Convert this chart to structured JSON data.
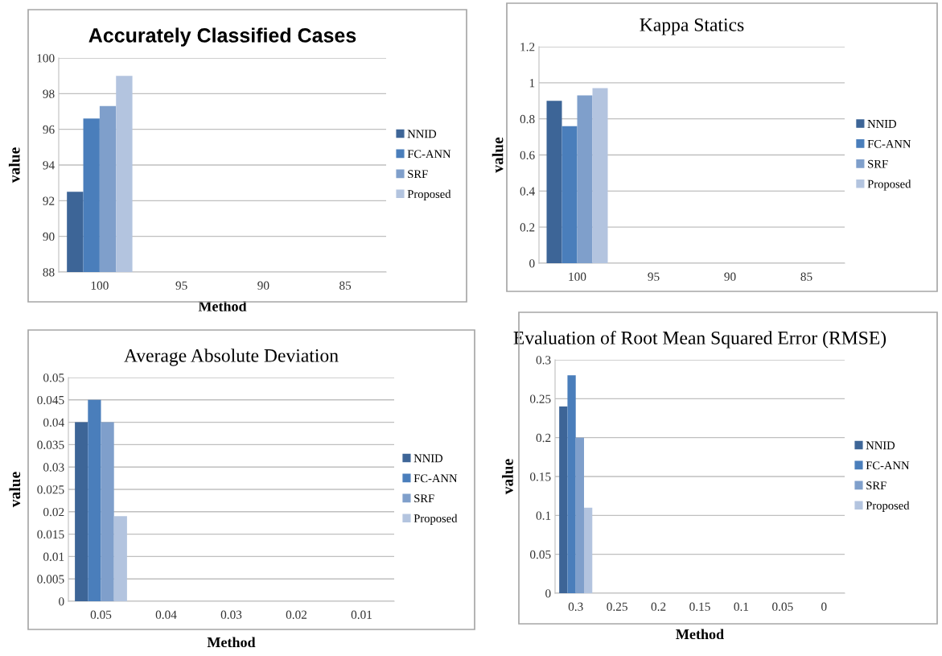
{
  "chart_data": [
    {
      "type": "bar",
      "title": "Accurately Classified Cases",
      "xlabel": "Method",
      "ylabel": "value",
      "categories": [
        "100",
        "95",
        "90",
        "85"
      ],
      "ylim": [
        88,
        100
      ],
      "yticks": [
        88,
        90,
        92,
        94,
        96,
        98,
        100
      ],
      "grid": "y",
      "legend": "right",
      "series": [
        {
          "name": "NNID",
          "color": "#3d6597",
          "values": [
            92.5,
            null,
            null,
            null
          ]
        },
        {
          "name": "FC-ANN",
          "color": "#4a7ebb",
          "values": [
            96.6,
            null,
            null,
            null
          ]
        },
        {
          "name": "SRF",
          "color": "#7f9fcb",
          "values": [
            97.3,
            null,
            null,
            null
          ]
        },
        {
          "name": "Proposed",
          "color": "#b3c4df",
          "values": [
            99,
            null,
            null,
            null
          ]
        }
      ]
    },
    {
      "type": "bar",
      "title": "Kappa Statics",
      "ylabel": "value",
      "categories": [
        "100",
        "95",
        "90",
        "85"
      ],
      "ylim": [
        0,
        1.2
      ],
      "yticks": [
        0,
        0.2,
        0.4,
        0.6,
        0.8,
        1,
        1.2
      ],
      "grid": "y",
      "legend": "right",
      "series": [
        {
          "name": "NNID",
          "color": "#3d6597",
          "values": [
            0.9,
            null,
            null,
            null
          ]
        },
        {
          "name": "FC-ANN",
          "color": "#4a7ebb",
          "values": [
            0.76,
            null,
            null,
            null
          ]
        },
        {
          "name": "SRF",
          "color": "#7f9fcb",
          "values": [
            0.93,
            null,
            null,
            null
          ]
        },
        {
          "name": "Proposed",
          "color": "#b3c4df",
          "values": [
            0.97,
            null,
            null,
            null
          ]
        }
      ]
    },
    {
      "type": "bar",
      "title": "Average Absolute Deviation",
      "xlabel": "Method",
      "ylabel": "value",
      "categories": [
        "0.05",
        "0.04",
        "0.03",
        "0.02",
        "0.01"
      ],
      "ylim": [
        0,
        0.05
      ],
      "yticks": [
        0,
        0.005,
        0.01,
        0.015,
        0.02,
        0.025,
        0.03,
        0.035,
        0.04,
        0.045,
        0.05
      ],
      "grid": "y",
      "legend": "right",
      "series": [
        {
          "name": "NNID",
          "color": "#3d6597",
          "values": [
            0.04,
            null,
            null,
            null,
            null
          ]
        },
        {
          "name": "FC-ANN",
          "color": "#4a7ebb",
          "values": [
            0.045,
            null,
            null,
            null,
            null
          ]
        },
        {
          "name": "SRF",
          "color": "#7f9fcb",
          "values": [
            0.04,
            null,
            null,
            null,
            null
          ]
        },
        {
          "name": "Proposed",
          "color": "#b3c4df",
          "values": [
            0.019,
            null,
            null,
            null,
            null
          ]
        }
      ]
    },
    {
      "type": "bar",
      "title": "Evaluation of Root Mean Squared Error (RMSE)",
      "xlabel": "Method",
      "ylabel": "value",
      "categories": [
        "0.3",
        "0.25",
        "0.2",
        "0.15",
        "0.1",
        "0.05",
        "0"
      ],
      "ylim": [
        0,
        0.3
      ],
      "yticks": [
        0,
        0.05,
        0.1,
        0.15,
        0.2,
        0.25,
        0.3
      ],
      "grid": "y",
      "legend": "right",
      "series": [
        {
          "name": "NNID",
          "color": "#3d6597",
          "values": [
            0.24,
            null,
            null,
            null,
            null,
            null,
            null
          ]
        },
        {
          "name": "FC-ANN",
          "color": "#4a7ebb",
          "values": [
            0.28,
            null,
            null,
            null,
            null,
            null,
            null
          ]
        },
        {
          "name": "SRF",
          "color": "#7f9fcb",
          "values": [
            0.2,
            null,
            null,
            null,
            null,
            null,
            null
          ]
        },
        {
          "name": "Proposed",
          "color": "#b3c4df",
          "values": [
            0.11,
            null,
            null,
            null,
            null,
            null,
            null
          ]
        }
      ]
    }
  ]
}
